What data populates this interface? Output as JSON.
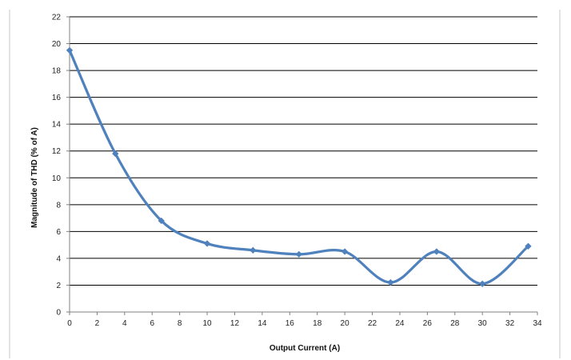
{
  "chart_data": {
    "type": "line",
    "title": "",
    "xlabel": "Output Current (A)",
    "ylabel": "Magnitude of THD (% of A)",
    "xlim": [
      0,
      34
    ],
    "ylim": [
      0,
      22
    ],
    "xticks": [
      0,
      2,
      4,
      6,
      8,
      10,
      12,
      14,
      16,
      18,
      20,
      22,
      24,
      26,
      28,
      30,
      32,
      34
    ],
    "yticks": [
      0,
      2,
      4,
      6,
      8,
      10,
      12,
      14,
      16,
      18,
      20,
      22
    ],
    "grid": "horizontal",
    "legend": "none",
    "smooth": true,
    "series": [
      {
        "color": "#4F81BD",
        "marker": "diamond",
        "x": [
          0,
          3.33,
          6.67,
          10,
          13.33,
          16.67,
          20,
          23.33,
          26.67,
          30,
          33.33
        ],
        "y": [
          19.5,
          11.8,
          6.8,
          5.1,
          4.6,
          4.3,
          4.5,
          2.2,
          4.5,
          2.1,
          4.9
        ]
      }
    ]
  }
}
